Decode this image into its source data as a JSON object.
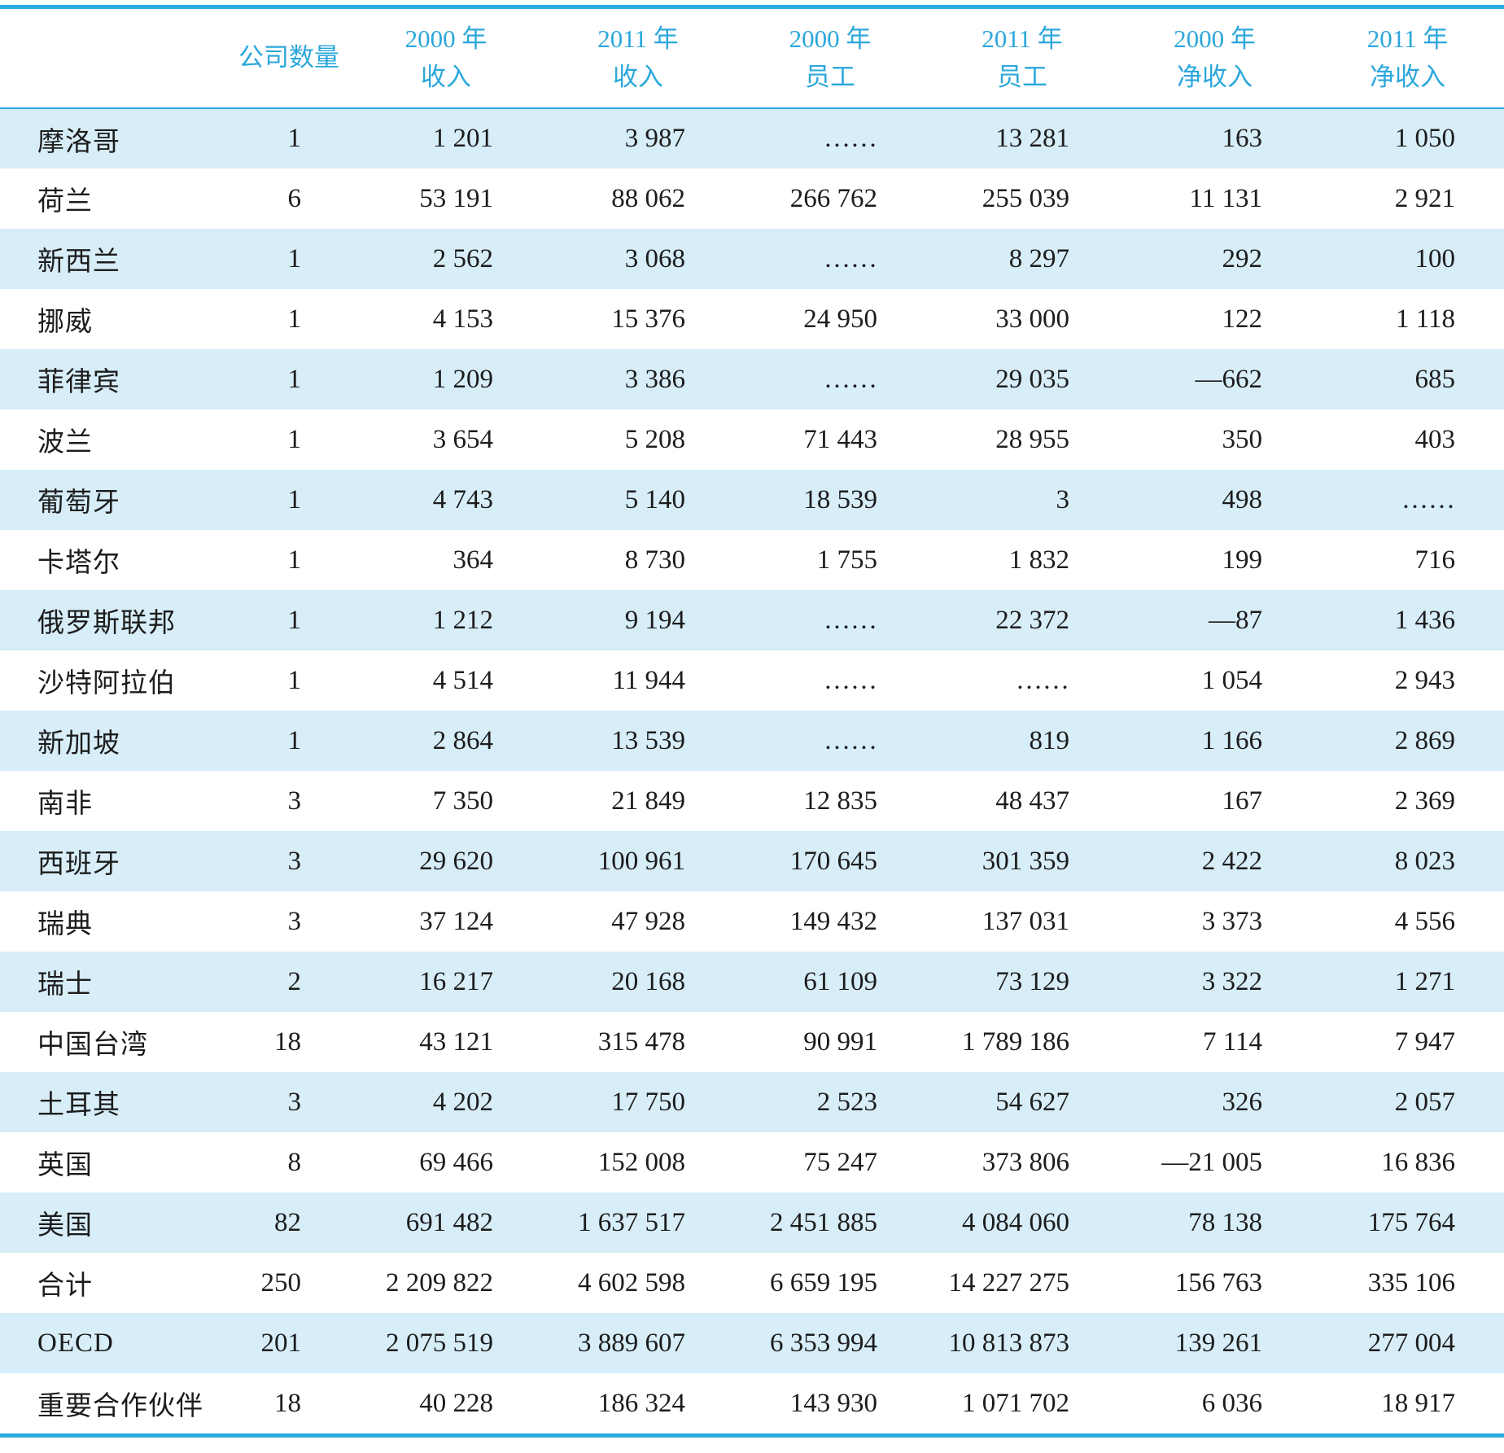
{
  "page": {
    "colors": {
      "accent": "#29abe2",
      "band": "#d7edf8",
      "header_text": "#2ba7db",
      "text": "#1c1c1c"
    }
  },
  "table": {
    "header": [
      "",
      "公司数量",
      "2000 年\n收入",
      "2011 年\n收入",
      "2000 年\n员工",
      "2011 年\n员工",
      "2000 年\n净收入",
      "2011 年\n净收入"
    ],
    "missing_marker": "……",
    "rows": [
      {
        "name": "摩洛哥",
        "values": [
          "1",
          "1 201",
          "3 987",
          "……",
          "13 281",
          "163",
          "1 050"
        ]
      },
      {
        "name": "荷兰",
        "values": [
          "6",
          "53 191",
          "88 062",
          "266 762",
          "255 039",
          "11 131",
          "2 921"
        ]
      },
      {
        "name": "新西兰",
        "values": [
          "1",
          "2 562",
          "3 068",
          "……",
          "8 297",
          "292",
          "100"
        ]
      },
      {
        "name": "挪威",
        "values": [
          "1",
          "4 153",
          "15 376",
          "24 950",
          "33 000",
          "122",
          "1 118"
        ]
      },
      {
        "name": "菲律宾",
        "values": [
          "1",
          "1 209",
          "3 386",
          "……",
          "29 035",
          "—662",
          "685"
        ]
      },
      {
        "name": "波兰",
        "values": [
          "1",
          "3 654",
          "5 208",
          "71 443",
          "28 955",
          "350",
          "403"
        ]
      },
      {
        "name": "葡萄牙",
        "values": [
          "1",
          "4 743",
          "5 140",
          "18 539",
          "3",
          "498",
          "……"
        ]
      },
      {
        "name": "卡塔尔",
        "values": [
          "1",
          "364",
          "8 730",
          "1 755",
          "1 832",
          "199",
          "716"
        ]
      },
      {
        "name": "俄罗斯联邦",
        "values": [
          "1",
          "1 212",
          "9 194",
          "……",
          "22 372",
          "—87",
          "1 436"
        ]
      },
      {
        "name": "沙特阿拉伯",
        "values": [
          "1",
          "4 514",
          "11 944",
          "……",
          "……",
          "1 054",
          "2 943"
        ]
      },
      {
        "name": "新加坡",
        "values": [
          "1",
          "2 864",
          "13 539",
          "……",
          "819",
          "1 166",
          "2 869"
        ]
      },
      {
        "name": "南非",
        "values": [
          "3",
          "7 350",
          "21 849",
          "12 835",
          "48 437",
          "167",
          "2 369"
        ]
      },
      {
        "name": "西班牙",
        "values": [
          "3",
          "29 620",
          "100 961",
          "170 645",
          "301 359",
          "2 422",
          "8 023"
        ]
      },
      {
        "name": "瑞典",
        "values": [
          "3",
          "37 124",
          "47 928",
          "149 432",
          "137 031",
          "3 373",
          "4 556"
        ]
      },
      {
        "name": "瑞士",
        "values": [
          "2",
          "16 217",
          "20 168",
          "61 109",
          "73 129",
          "3 322",
          "1 271"
        ]
      },
      {
        "name": "中国台湾",
        "values": [
          "18",
          "43 121",
          "315 478",
          "90 991",
          "1 789 186",
          "7 114",
          "7 947"
        ]
      },
      {
        "name": "土耳其",
        "values": [
          "3",
          "4 202",
          "17 750",
          "2 523",
          "54 627",
          "326",
          "2 057"
        ]
      },
      {
        "name": "英国",
        "values": [
          "8",
          "69 466",
          "152 008",
          "75 247",
          "373 806",
          "—21 005",
          "16 836"
        ]
      },
      {
        "name": "美国",
        "values": [
          "82",
          "691 482",
          "1 637 517",
          "2 451 885",
          "4 084 060",
          "78 138",
          "175 764"
        ]
      },
      {
        "name": "合计",
        "values": [
          "250",
          "2 209 822",
          "4 602 598",
          "6 659 195",
          "14 227 275",
          "156 763",
          "335 106"
        ]
      },
      {
        "name": "OECD",
        "values": [
          "201",
          "2 075 519",
          "3 889 607",
          "6 353 994",
          "10 813 873",
          "139 261",
          "277 004"
        ]
      },
      {
        "name": "重要合作伙伴",
        "values": [
          "18",
          "40 228",
          "186 324",
          "143 930",
          "1 071 702",
          "6 036",
          "18 917"
        ]
      }
    ]
  }
}
